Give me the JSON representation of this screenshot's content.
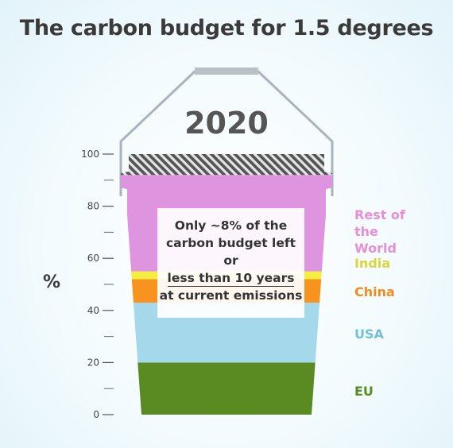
{
  "title": "The carbon budget for 1.5 degrees",
  "year_label": "2020",
  "y_axis_symbol": "%",
  "note": {
    "line1": "Only ~8% of the",
    "line2": "carbon budget left",
    "line3": "or",
    "line4": "less than 10 years",
    "line5": "at current emissions"
  },
  "legend": [
    {
      "label": "Rest of the World",
      "color": "#e68fd6"
    },
    {
      "label": "India",
      "color": "#d9d63a"
    },
    {
      "label": "China",
      "color": "#f28c1e"
    },
    {
      "label": "USA",
      "color": "#74bfd9"
    },
    {
      "label": "EU",
      "color": "#5a8a22"
    }
  ],
  "colors": {
    "hatch": "#555555",
    "bucket_outline": "#a9b4bd",
    "handle_cap": "#b9c1c8"
  },
  "chart_data": {
    "type": "stacked-bar",
    "title": "The carbon budget for 1.5 degrees",
    "ylabel": "%",
    "ylim": [
      0,
      100
    ],
    "yticks": [
      0,
      20,
      40,
      60,
      80,
      100
    ],
    "series": [
      {
        "name": "EU",
        "value": 20,
        "color": "#5a8a22"
      },
      {
        "name": "USA",
        "value": 23,
        "color": "#a6d8ec"
      },
      {
        "name": "China",
        "value": 9,
        "color": "#f7931e"
      },
      {
        "name": "India",
        "value": 3,
        "color": "#f3ee3f"
      },
      {
        "name": "Rest of the World",
        "value": 37,
        "color": "#df94df"
      },
      {
        "name": "Remaining budget",
        "value": 8,
        "color": "#555555",
        "pattern": "hatched"
      }
    ]
  }
}
